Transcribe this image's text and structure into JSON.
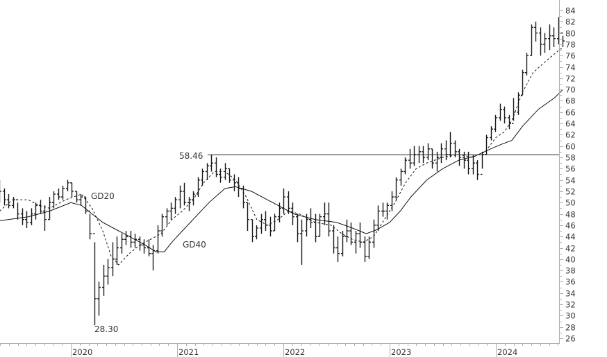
{
  "chart_data": {
    "type": "ohlc",
    "x_axis": {
      "ticks": [
        "2020",
        "2021",
        "2022",
        "2023",
        "2024"
      ],
      "range": [
        2019.33,
        2024.63
      ]
    },
    "y_axis": {
      "min": 26,
      "max": 84,
      "step": 2,
      "position": "right"
    },
    "grid": false,
    "bars_hlc": [
      [
        54,
        50,
        52
      ],
      [
        52.5,
        49.5,
        50.5
      ],
      [
        51.5,
        49,
        49.5
      ],
      [
        51,
        49,
        50.5
      ],
      [
        50,
        47,
        48
      ],
      [
        49,
        46,
        47
      ],
      [
        48.5,
        45.5,
        46.5
      ],
      [
        49,
        46,
        48
      ],
      [
        50,
        47,
        49.5
      ],
      [
        50.5,
        48,
        48.5
      ],
      [
        49.5,
        45,
        47
      ],
      [
        51,
        47,
        50
      ],
      [
        52,
        49,
        51.5
      ],
      [
        52.5,
        50.5,
        51
      ],
      [
        53,
        50.5,
        52.5
      ],
      [
        54,
        52,
        53.5
      ],
      [
        53.5,
        51,
        52
      ],
      [
        52,
        50,
        50.5
      ],
      [
        51.5,
        49.5,
        51
      ],
      [
        51,
        48,
        48.5
      ],
      [
        48,
        43.5,
        44.5
      ],
      [
        43,
        28.3,
        33
      ],
      [
        36,
        30,
        35
      ],
      [
        39,
        33.5,
        37
      ],
      [
        40,
        35.5,
        38.5
      ],
      [
        43,
        37,
        40
      ],
      [
        44,
        39,
        42
      ],
      [
        44.5,
        41,
        43.5
      ],
      [
        45,
        42.5,
        44
      ],
      [
        45,
        42,
        43
      ],
      [
        44.5,
        42,
        43.5
      ],
      [
        44,
        41.5,
        42.5
      ],
      [
        43.5,
        41,
        42
      ],
      [
        43.5,
        40.5,
        41
      ],
      [
        42.5,
        38,
        41.5
      ],
      [
        46,
        41,
        45
      ],
      [
        48,
        44,
        47.5
      ],
      [
        49,
        46,
        48.5
      ],
      [
        50,
        47,
        49
      ],
      [
        51,
        48,
        50.5
      ],
      [
        53,
        49,
        52
      ],
      [
        53.5,
        49.5,
        50
      ],
      [
        51,
        48.5,
        50.5
      ],
      [
        52,
        49.5,
        51.5
      ],
      [
        54.5,
        51,
        54
      ],
      [
        56,
        53,
        55.5
      ],
      [
        57,
        54,
        56.5
      ],
      [
        58.46,
        55.5,
        57
      ],
      [
        58,
        54.5,
        55
      ],
      [
        56,
        53.5,
        54.5
      ],
      [
        57,
        54,
        56
      ],
      [
        56,
        53.5,
        54
      ],
      [
        55,
        52,
        53.5
      ],
      [
        54.5,
        51,
        52.5
      ],
      [
        53,
        49,
        50
      ],
      [
        50,
        45,
        47
      ],
      [
        47,
        43,
        44
      ],
      [
        46,
        43.5,
        45.5
      ],
      [
        48,
        44.5,
        47
      ],
      [
        48.5,
        45,
        46
      ],
      [
        47.5,
        44,
        45
      ],
      [
        48,
        45,
        47.5
      ],
      [
        50,
        46.5,
        49
      ],
      [
        52.5,
        48,
        51
      ],
      [
        52,
        48,
        49
      ],
      [
        50,
        46,
        47.5
      ],
      [
        48,
        43,
        44.5
      ],
      [
        47,
        39,
        45
      ],
      [
        48,
        44,
        47
      ],
      [
        49,
        45.5,
        46.5
      ],
      [
        48,
        43,
        44
      ],
      [
        48,
        44,
        47.5
      ],
      [
        50,
        46,
        48
      ],
      [
        50,
        44,
        45
      ],
      [
        46,
        41,
        42
      ],
      [
        44,
        39.5,
        41
      ],
      [
        45,
        40.5,
        44
      ],
      [
        47,
        43,
        45
      ],
      [
        46.5,
        42.5,
        43
      ],
      [
        45,
        41,
        44.5
      ],
      [
        46.5,
        42,
        43
      ],
      [
        44,
        39.5,
        40.5
      ],
      [
        44,
        40,
        43
      ],
      [
        47,
        42,
        46
      ],
      [
        49.5,
        45,
        48.5
      ],
      [
        50,
        47.5,
        48.5
      ],
      [
        50,
        47,
        49.5
      ],
      [
        52,
        48.5,
        51
      ],
      [
        54.5,
        50.5,
        54
      ],
      [
        56,
        53,
        55.5
      ],
      [
        58,
        55,
        57.5
      ],
      [
        59.5,
        56,
        57
      ],
      [
        60,
        56.5,
        58.5
      ],
      [
        60,
        57,
        59
      ],
      [
        60,
        57,
        58
      ],
      [
        60.5,
        57.5,
        59.5
      ],
      [
        59.5,
        56,
        57
      ],
      [
        59,
        55.5,
        58
      ],
      [
        60.5,
        57,
        59.5
      ],
      [
        61,
        57.5,
        58.5
      ],
      [
        62.5,
        58,
        60.5
      ],
      [
        61,
        58,
        59
      ],
      [
        59.5,
        56.5,
        58
      ],
      [
        59,
        56,
        57.5
      ],
      [
        59,
        55,
        56
      ],
      [
        58.5,
        55,
        57
      ],
      [
        57.5,
        54,
        55
      ],
      [
        59,
        56,
        58.5
      ],
      [
        62,
        58.5,
        61.5
      ],
      [
        63.5,
        61,
        63
      ],
      [
        65.5,
        62.5,
        65
      ],
      [
        67.5,
        64.5,
        66.5
      ],
      [
        67,
        64,
        65
      ],
      [
        65.5,
        63,
        64
      ],
      [
        68.5,
        64.5,
        66
      ],
      [
        69.5,
        65.5,
        69
      ],
      [
        73.5,
        69,
        73
      ],
      [
        76.5,
        72.5,
        76
      ],
      [
        81.5,
        76,
        81
      ],
      [
        82,
        78.5,
        80
      ],
      [
        81,
        76,
        78
      ],
      [
        80,
        76.5,
        79
      ],
      [
        81.5,
        77,
        79.5
      ],
      [
        81,
        77.5,
        79
      ],
      [
        82.8,
        78,
        80
      ],
      [
        79.5,
        77.5,
        78.6
      ]
    ],
    "series": [
      {
        "name": "GD20",
        "style": "dashed",
        "points": [
          [
            2019.33,
            48.5
          ],
          [
            2019.45,
            50.5
          ],
          [
            2019.6,
            50.5
          ],
          [
            2019.7,
            49.5
          ],
          [
            2019.8,
            49
          ],
          [
            2019.95,
            50.5
          ],
          [
            2020.1,
            51.5
          ],
          [
            2020.2,
            49
          ],
          [
            2020.3,
            45
          ],
          [
            2020.38,
            40.5
          ],
          [
            2020.45,
            39
          ],
          [
            2020.55,
            41
          ],
          [
            2020.65,
            42.5
          ],
          [
            2020.75,
            43.5
          ],
          [
            2020.85,
            44.5
          ],
          [
            2020.95,
            47
          ],
          [
            2021.05,
            48.5
          ],
          [
            2021.15,
            50.5
          ],
          [
            2021.25,
            53.5
          ],
          [
            2021.35,
            55.5
          ],
          [
            2021.45,
            55.5
          ],
          [
            2021.55,
            54
          ],
          [
            2021.65,
            51
          ],
          [
            2021.75,
            47
          ],
          [
            2021.85,
            46
          ],
          [
            2021.95,
            47
          ],
          [
            2022.05,
            48.5
          ],
          [
            2022.15,
            48
          ],
          [
            2022.3,
            46.5
          ],
          [
            2022.45,
            46
          ],
          [
            2022.55,
            44.5
          ],
          [
            2022.65,
            43.5
          ],
          [
            2022.75,
            43
          ],
          [
            2022.85,
            44
          ],
          [
            2022.95,
            47
          ],
          [
            2023.05,
            50
          ],
          [
            2023.15,
            53.5
          ],
          [
            2023.25,
            56
          ],
          [
            2023.35,
            57
          ],
          [
            2023.5,
            58
          ],
          [
            2023.65,
            58.5
          ],
          [
            2023.78,
            58
          ],
          [
            2023.9,
            59
          ],
          [
            2024.0,
            61.5
          ],
          [
            2024.08,
            62.5
          ],
          [
            2024.15,
            64.5
          ],
          [
            2024.25,
            69.5
          ],
          [
            2024.35,
            73
          ],
          [
            2024.5,
            75.5
          ],
          [
            2024.63,
            77.5
          ]
        ]
      },
      {
        "name": "GD40",
        "style": "solid",
        "points": [
          [
            2019.33,
            46.8
          ],
          [
            2019.6,
            47.5
          ],
          [
            2019.8,
            48.5
          ],
          [
            2020.0,
            50
          ],
          [
            2020.1,
            49.5
          ],
          [
            2020.2,
            48
          ],
          [
            2020.3,
            46.5
          ],
          [
            2020.4,
            45.5
          ],
          [
            2020.5,
            44.5
          ],
          [
            2020.6,
            43.5
          ],
          [
            2020.7,
            42.5
          ],
          [
            2020.8,
            41.3
          ],
          [
            2020.88,
            41.3
          ],
          [
            2020.95,
            43
          ],
          [
            2021.05,
            45
          ],
          [
            2021.15,
            47
          ],
          [
            2021.3,
            50
          ],
          [
            2021.45,
            52.5
          ],
          [
            2021.55,
            52.8
          ],
          [
            2021.7,
            52
          ],
          [
            2021.85,
            50.5
          ],
          [
            2021.95,
            49.5
          ],
          [
            2022.1,
            48
          ],
          [
            2022.3,
            47
          ],
          [
            2022.5,
            46.5
          ],
          [
            2022.65,
            45.5
          ],
          [
            2022.78,
            44.5
          ],
          [
            2022.88,
            45.2
          ],
          [
            2023.0,
            46.5
          ],
          [
            2023.1,
            48.5
          ],
          [
            2023.2,
            51
          ],
          [
            2023.35,
            54
          ],
          [
            2023.5,
            56
          ],
          [
            2023.65,
            57.5
          ],
          [
            2023.8,
            58.2
          ],
          [
            2023.95,
            59.5
          ],
          [
            2024.05,
            60.3
          ],
          [
            2024.15,
            61
          ],
          [
            2024.25,
            63.5
          ],
          [
            2024.4,
            66.5
          ],
          [
            2024.55,
            68.5
          ],
          [
            2024.63,
            70
          ]
        ]
      }
    ],
    "resistance_line": {
      "value": 58.46,
      "from": 2021.29
    },
    "annotations": {
      "high_label": "58.46",
      "low_label": "28.30",
      "gd20_label": "GD20",
      "gd40_label": "GD40"
    },
    "colors": {
      "bars": "#1a1a1a",
      "axis": "#b0b0b0",
      "text": "#333333"
    }
  }
}
